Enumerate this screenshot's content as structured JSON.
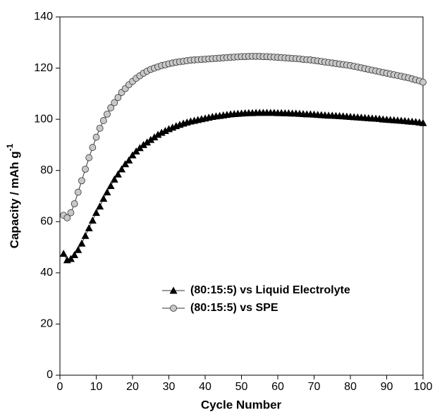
{
  "chart_data": {
    "type": "line",
    "x_label": "Cycle Number",
    "y_label": "Capacity / mAh g",
    "y_label_superscript": "-1",
    "x": [
      1,
      2,
      3,
      4,
      5,
      6,
      7,
      8,
      9,
      10,
      11,
      12,
      13,
      14,
      15,
      16,
      17,
      18,
      19,
      20,
      21,
      22,
      23,
      24,
      25,
      26,
      27,
      28,
      29,
      30,
      31,
      32,
      33,
      34,
      35,
      36,
      37,
      38,
      39,
      40,
      41,
      42,
      43,
      44,
      45,
      46,
      47,
      48,
      49,
      50,
      51,
      52,
      53,
      54,
      55,
      56,
      57,
      58,
      59,
      60,
      61,
      62,
      63,
      64,
      65,
      66,
      67,
      68,
      69,
      70,
      71,
      72,
      73,
      74,
      75,
      76,
      77,
      78,
      79,
      80,
      81,
      82,
      83,
      84,
      85,
      86,
      87,
      88,
      89,
      90,
      91,
      92,
      93,
      94,
      95,
      96,
      97,
      98,
      99,
      100
    ],
    "series": [
      {
        "name": "(80:15:5) vs Liquid Electrolyte",
        "color": "#000000",
        "marker": "triangle",
        "values": [
          47.5,
          45,
          45.5,
          47,
          49,
          51.5,
          54.5,
          57.5,
          60.5,
          63.5,
          66,
          69,
          71.5,
          74,
          76.5,
          78.5,
          80.5,
          82.5,
          84,
          86,
          87.5,
          88.8,
          90,
          91,
          92,
          93,
          94,
          94.8,
          95.5,
          96.2,
          96.8,
          97.4,
          97.9,
          98.4,
          98.8,
          99.2,
          99.5,
          99.8,
          100.1,
          100.4,
          100.7,
          101,
          101.2,
          101.4,
          101.6,
          101.8,
          102,
          102.1,
          102.2,
          102.3,
          102.4,
          102.5,
          102.5,
          102.6,
          102.6,
          102.6,
          102.6,
          102.6,
          102.6,
          102.5,
          102.5,
          102.4,
          102.4,
          102.3,
          102.3,
          102.2,
          102.1,
          102,
          102,
          101.9,
          101.8,
          101.7,
          101.6,
          101.5,
          101.5,
          101.4,
          101.3,
          101.2,
          101.1,
          101,
          100.9,
          100.8,
          100.7,
          100.6,
          100.5,
          100.4,
          100.3,
          100.2,
          100,
          99.9,
          99.8,
          99.7,
          99.6,
          99.5,
          99.4,
          99.2,
          99.1,
          99,
          98.8,
          98.6
        ]
      },
      {
        "name": "(80:15:5) vs SPE",
        "color": "#c8c8c8",
        "marker": "circle",
        "values": [
          62.5,
          61.5,
          63.5,
          67,
          71.5,
          76,
          80.5,
          85,
          89,
          93,
          96.5,
          99.5,
          102,
          104.5,
          106.5,
          108.5,
          110.5,
          112,
          113.5,
          114.8,
          116,
          117,
          118,
          118.8,
          119.5,
          120,
          120.5,
          121,
          121.3,
          121.7,
          122,
          122.3,
          122.5,
          122.7,
          122.9,
          123.1,
          123.2,
          123.3,
          123.4,
          123.5,
          123.6,
          123.7,
          123.8,
          123.9,
          124,
          124.1,
          124.2,
          124.3,
          124.4,
          124.5,
          124.5,
          124.6,
          124.6,
          124.6,
          124.6,
          124.5,
          124.5,
          124.4,
          124.3,
          124.2,
          124.1,
          124,
          123.9,
          123.8,
          123.7,
          123.6,
          123.4,
          123.3,
          123.2,
          123,
          122.8,
          122.6,
          122.4,
          122.2,
          122,
          121.8,
          121.6,
          121.4,
          121.2,
          121,
          120.7,
          120.4,
          120.1,
          119.8,
          119.5,
          119.2,
          118.9,
          118.6,
          118.3,
          118,
          117.7,
          117.4,
          117.1,
          116.8,
          116.5,
          116.2,
          115.8,
          115.4,
          115,
          114.5
        ]
      }
    ],
    "xlim": [
      0,
      100
    ],
    "xticks": [
      0,
      10,
      20,
      30,
      40,
      50,
      60,
      70,
      80,
      90,
      100
    ],
    "ylim": [
      0,
      140
    ],
    "yticks": [
      0,
      20,
      40,
      60,
      80,
      100,
      120,
      140
    ],
    "grid": false,
    "legend": "lower center"
  }
}
